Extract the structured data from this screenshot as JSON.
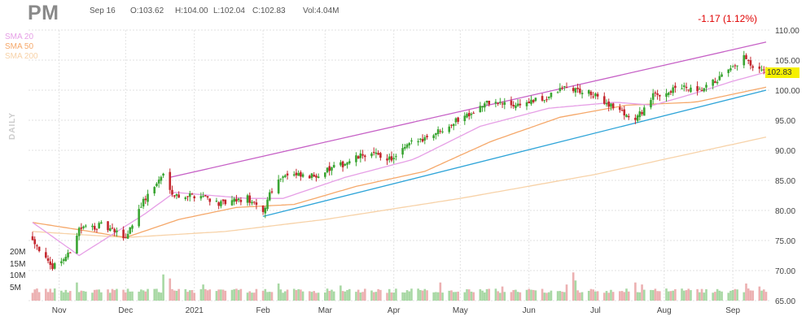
{
  "header": {
    "ticker": "PM",
    "date": "Sep 16",
    "open": "O:103.62",
    "high": "H:104.00",
    "low": "L:102.04",
    "close": "C:102.83",
    "volume": "Vol:4.04M",
    "change": "-1.17 (1.12%)"
  },
  "legend": [
    {
      "label": "SMA 20",
      "color": "#e69fe6"
    },
    {
      "label": "SMA 50",
      "color": "#f5a86a"
    },
    {
      "label": "SMA 200",
      "color": "#f7d2a8"
    }
  ],
  "timeframe_label": "DAILY",
  "volume_axis_labels": [
    "20M",
    "15M",
    "10M",
    "5M"
  ],
  "last_price_label": "102.83",
  "colors": {
    "up": "#3aa532",
    "down": "#c3272e",
    "trend_upper": "#c660c6",
    "trend_lower": "#2ea4d8",
    "grid": "#e2e2e2",
    "last_price_bg": "#f5f000"
  },
  "chart_data": {
    "type": "candlestick",
    "ylim": [
      65,
      110
    ],
    "y_ticks": [
      "110.00",
      "105.00",
      "100.00",
      "95.00",
      "90.00",
      "85.00",
      "80.00",
      "75.00",
      "70.00",
      "65.00"
    ],
    "x_labels": [
      "Nov",
      "Dec",
      "2021",
      "Feb",
      "Mar",
      "Apr",
      "May",
      "Jun",
      "Jul",
      "Aug",
      "Sep"
    ],
    "label_dates": [
      "2020-11-01",
      "2020-12-01",
      "2021-01-01",
      "2021-02-01",
      "2021-03-01",
      "2021-04-01",
      "2021-05-01",
      "2021-06-01",
      "2021-07-01",
      "2021-08-01",
      "2021-09-01"
    ],
    "x_range": [
      "2020-10-20",
      "2021-09-16"
    ],
    "grid": true,
    "close_anchors": [
      [
        "2020-10-20",
        75.5
      ],
      [
        "2020-10-28",
        70.5
      ],
      [
        "2020-11-05",
        72.5
      ],
      [
        "2020-11-10",
        77
      ],
      [
        "2020-11-20",
        77.5
      ],
      [
        "2020-12-01",
        75.5
      ],
      [
        "2020-12-08",
        81
      ],
      [
        "2020-12-18",
        86
      ],
      [
        "2020-12-23",
        82.5
      ],
      [
        "2021-01-05",
        82.5
      ],
      [
        "2021-01-13",
        81
      ],
      [
        "2021-01-25",
        82
      ],
      [
        "2021-02-01",
        79.5
      ],
      [
        "2021-02-04",
        83
      ],
      [
        "2021-02-10",
        86
      ],
      [
        "2021-02-22",
        85.5
      ],
      [
        "2021-03-08",
        87.5
      ],
      [
        "2021-03-20",
        89.5
      ],
      [
        "2021-04-01",
        88.5
      ],
      [
        "2021-04-08",
        91
      ],
      [
        "2021-04-20",
        93
      ],
      [
        "2021-05-04",
        96
      ],
      [
        "2021-05-14",
        98
      ],
      [
        "2021-05-25",
        97.5
      ],
      [
        "2021-06-08",
        98.5
      ],
      [
        "2021-06-17",
        100.5
      ],
      [
        "2021-06-28",
        99.5
      ],
      [
        "2021-07-08",
        97.5
      ],
      [
        "2021-07-19",
        95
      ],
      [
        "2021-07-27",
        99
      ],
      [
        "2021-08-09",
        100.5
      ],
      [
        "2021-08-16",
        99.5
      ],
      [
        "2021-08-24",
        101.5
      ],
      [
        "2021-09-01",
        103.5
      ],
      [
        "2021-09-06",
        105.5
      ],
      [
        "2021-09-10",
        103.5
      ],
      [
        "2021-09-16",
        102.83
      ]
    ],
    "sma20": [
      [
        "2020-10-20",
        78
      ],
      [
        "2020-11-10",
        72.5
      ],
      [
        "2020-11-25",
        76
      ],
      [
        "2020-12-10",
        79.5
      ],
      [
        "2020-12-23",
        83
      ],
      [
        "2021-01-25",
        82
      ],
      [
        "2021-02-10",
        82
      ],
      [
        "2021-03-10",
        85.5
      ],
      [
        "2021-04-10",
        88.5
      ],
      [
        "2021-05-10",
        94
      ],
      [
        "2021-06-10",
        97
      ],
      [
        "2021-07-10",
        98
      ],
      [
        "2021-07-27",
        97.5
      ],
      [
        "2021-08-15",
        99.5
      ],
      [
        "2021-09-01",
        101.5
      ],
      [
        "2021-09-16",
        103
      ]
    ],
    "sma50": [
      [
        "2020-10-20",
        78
      ],
      [
        "2020-11-15",
        76.5
      ],
      [
        "2020-12-01",
        75.5
      ],
      [
        "2020-12-25",
        78.5
      ],
      [
        "2021-01-20",
        80.5
      ],
      [
        "2021-02-15",
        81
      ],
      [
        "2021-03-15",
        84
      ],
      [
        "2021-04-15",
        86.5
      ],
      [
        "2021-05-15",
        91.5
      ],
      [
        "2021-06-15",
        95.5
      ],
      [
        "2021-07-15",
        97.5
      ],
      [
        "2021-08-15",
        98
      ],
      [
        "2021-09-16",
        100.5
      ]
    ],
    "sma200": [
      [
        "2020-10-20",
        76.5
      ],
      [
        "2020-12-01",
        75.5
      ],
      [
        "2021-01-15",
        76.5
      ],
      [
        "2021-03-01",
        78.5
      ],
      [
        "2021-05-01",
        82
      ],
      [
        "2021-07-01",
        86
      ],
      [
        "2021-09-16",
        92.2
      ]
    ],
    "trend_upper": [
      [
        "2020-12-21",
        85.5
      ],
      [
        "2021-09-16",
        108
      ]
    ],
    "trend_lower": [
      [
        "2021-02-01",
        79
      ],
      [
        "2021-09-16",
        100
      ]
    ],
    "volume_ylim_millions": [
      0,
      25
    ],
    "volume_baseline_millions": 4.5,
    "volume_spikes_millions": [
      [
        "2020-11-09",
        9
      ],
      [
        "2020-12-18",
        13
      ],
      [
        "2020-12-21",
        11
      ],
      [
        "2021-01-05",
        8
      ],
      [
        "2021-02-08",
        8.5
      ],
      [
        "2021-03-08",
        7.5
      ],
      [
        "2021-04-22",
        9
      ],
      [
        "2021-05-20",
        7
      ],
      [
        "2021-06-18",
        8
      ],
      [
        "2021-06-21",
        14
      ],
      [
        "2021-06-22",
        10
      ],
      [
        "2021-07-19",
        9
      ],
      [
        "2021-07-22",
        8
      ],
      [
        "2021-09-07",
        8.5
      ],
      [
        "2021-09-13",
        7
      ]
    ]
  }
}
